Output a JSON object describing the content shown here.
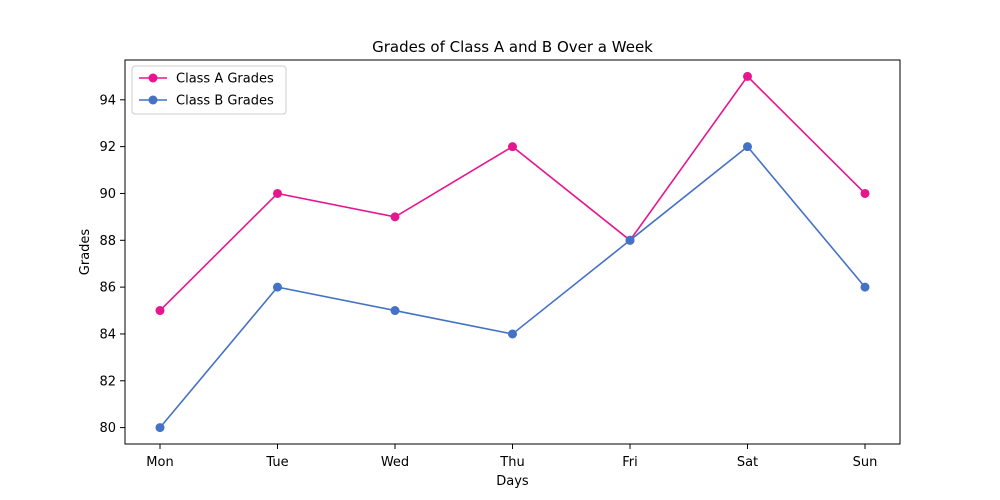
{
  "chart_data": {
    "type": "line",
    "title": "Grades of Class A and B Over a Week",
    "xlabel": "Days",
    "ylabel": "Grades",
    "categories": [
      "Mon",
      "Tue",
      "Wed",
      "Thu",
      "Fri",
      "Sat",
      "Sun"
    ],
    "ylim": [
      79.3,
      95.7
    ],
    "yticks": [
      80,
      82,
      84,
      86,
      88,
      90,
      92,
      94
    ],
    "grid": false,
    "legend_position": "top-left",
    "series": [
      {
        "name": "Class A Grades",
        "color": "#e6168f",
        "values": [
          85,
          90,
          89,
          92,
          88,
          95,
          90
        ]
      },
      {
        "name": "Class B Grades",
        "color": "#4472c4",
        "values": [
          80,
          86,
          85,
          84,
          88,
          92,
          86
        ]
      }
    ]
  }
}
